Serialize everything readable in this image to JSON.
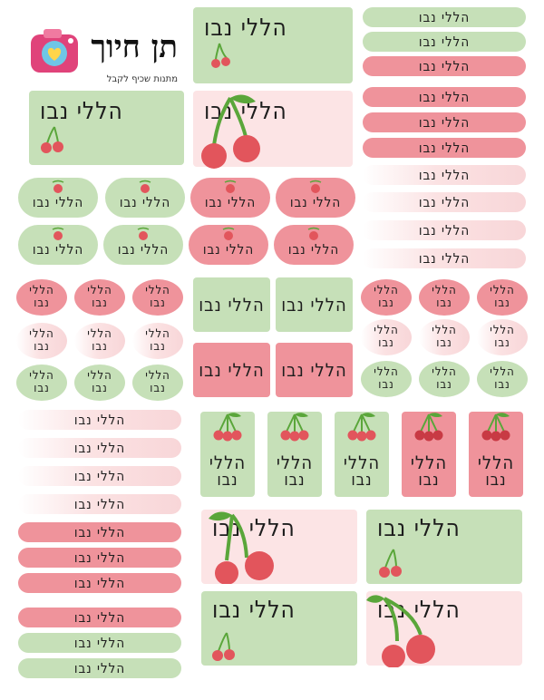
{
  "label_text": "הללי נבו",
  "word1": "הללי",
  "word2": "נבו",
  "brand": {
    "name": "תן חיוך",
    "tagline": "מתנות שכיף לקבל"
  },
  "colors": {
    "green": "#c6e0b8",
    "pink": "#ef939b",
    "light_pink": "#fce4e5",
    "cherry_red": "#e2555c",
    "stem_green": "#5aa63a"
  },
  "icons": [
    "cherry-icon",
    "camera-heart-logo-icon"
  ]
}
